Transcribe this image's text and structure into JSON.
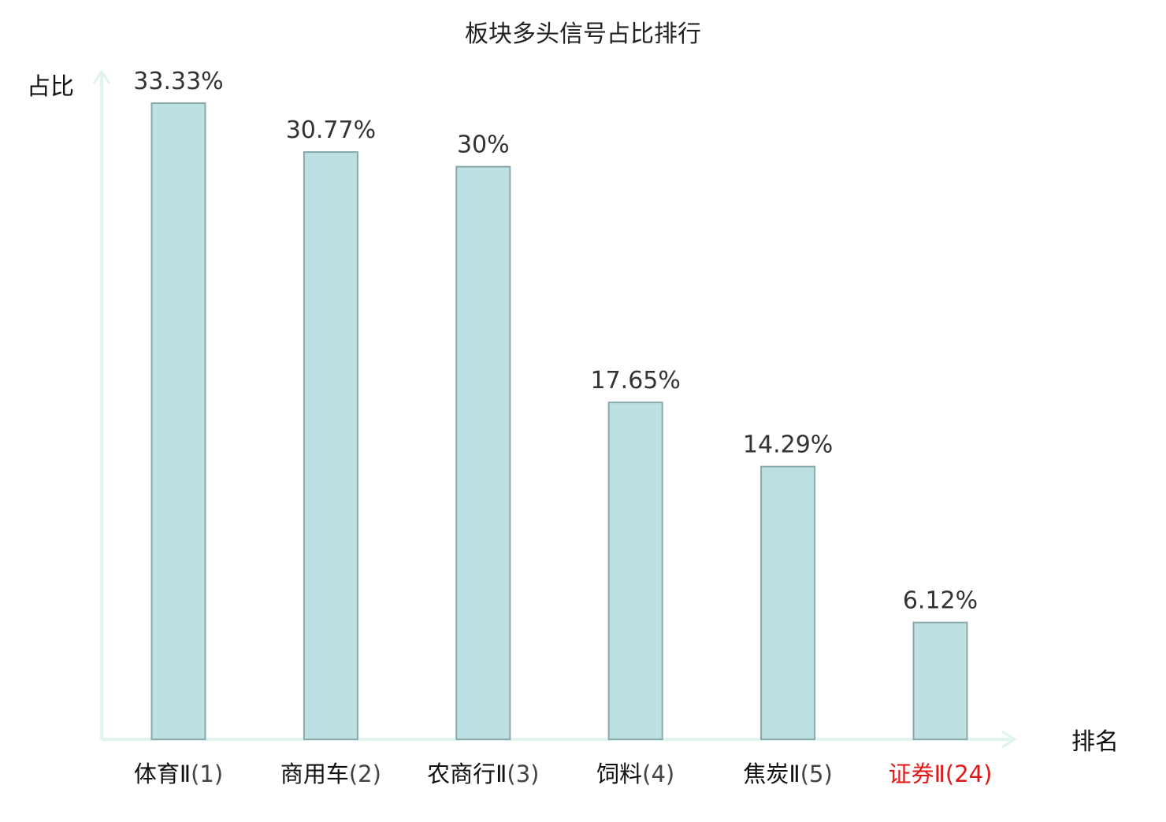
{
  "chart_data": {
    "type": "bar",
    "title": "板块多头信号占比排行",
    "xlabel": "排名",
    "ylabel": "占比",
    "categories": [
      {
        "name": "体育Ⅱ",
        "rank": "(1)"
      },
      {
        "name": "商用车",
        "rank": "(2)"
      },
      {
        "name": "农商行Ⅱ",
        "rank": "(3)"
      },
      {
        "name": "饲料",
        "rank": "(4)"
      },
      {
        "name": "焦炭Ⅱ",
        "rank": "(5)"
      },
      {
        "name": "证券Ⅱ",
        "rank": "(24)",
        "highlight": true
      }
    ],
    "values": [
      33.33,
      30.77,
      30,
      17.65,
      14.29,
      6.12
    ],
    "value_labels": [
      "33.33%",
      "30.77%",
      "30%",
      "17.65%",
      "14.29%",
      "6.12%"
    ],
    "ylim": [
      0,
      33.33
    ],
    "grid": false,
    "colors": {
      "bar_fill": "#bde0e2",
      "bar_stroke": "#8aa9ab",
      "axis": "#dff3ef",
      "label_normal": "#111111",
      "rank_normal": "#444444",
      "label_highlight": "#e01818"
    }
  }
}
